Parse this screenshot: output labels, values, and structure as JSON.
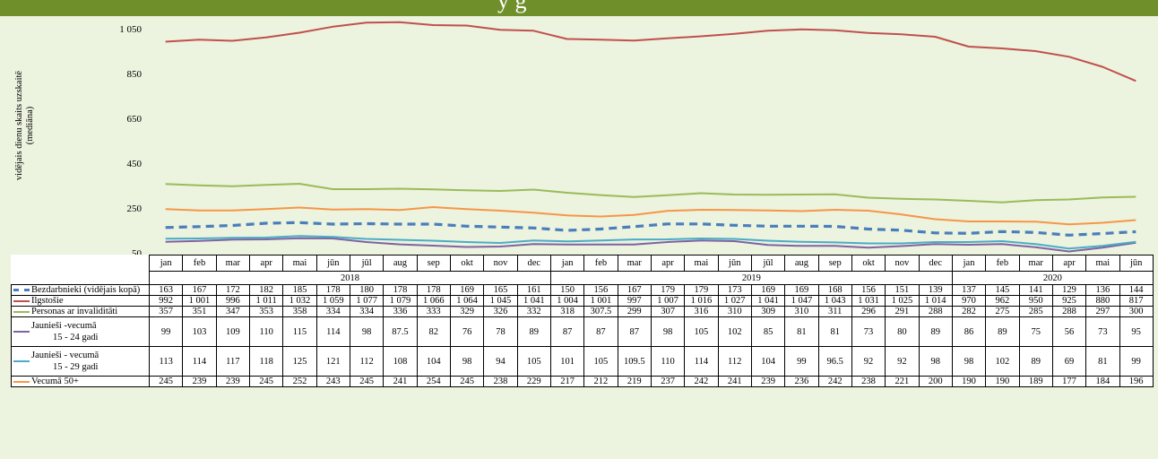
{
  "header": {
    "title_fragment": "y                    g"
  },
  "chart_data": {
    "type": "line",
    "ylabel": "vidējais dienu skaits uzskaitē (mediāna)",
    "ylabel_lines": [
      "vidējais dienu skaits uzskaitē",
      "(mediāna)"
    ],
    "ylim": [
      50,
      1050
    ],
    "yticks": [
      "1 050",
      "850",
      "650",
      "450",
      "250",
      "50"
    ],
    "ytick_values": [
      1050,
      850,
      650,
      450,
      250,
      50
    ],
    "grid": false,
    "months": [
      "jan",
      "feb",
      "mar",
      "apr",
      "mai",
      "jūn",
      "jūl",
      "aug",
      "sep",
      "okt",
      "nov",
      "dec",
      "jan",
      "feb",
      "mar",
      "apr",
      "mai",
      "jūn",
      "jūl",
      "aug",
      "sep",
      "okt",
      "nov",
      "dec",
      "jan",
      "feb",
      "mar",
      "apr",
      "mai",
      "jūn"
    ],
    "years": [
      {
        "label": "2018",
        "span": 12
      },
      {
        "label": "2019",
        "span": 12
      },
      {
        "label": "2020",
        "span": 6
      }
    ],
    "series": [
      {
        "name": "Bezdarbnieki (vidējais kopā)",
        "color": "#4a7ebb",
        "dash": true,
        "values": [
          "163",
          "167",
          "172",
          "182",
          "185",
          "178",
          "180",
          "178",
          "178",
          "169",
          "165",
          "161",
          "150",
          "156",
          "167",
          "179",
          "179",
          "173",
          "169",
          "169",
          "168",
          "156",
          "151",
          "139",
          "137",
          "145",
          "141",
          "129",
          "136",
          "144"
        ]
      },
      {
        "name": "Ilgstošie",
        "color": "#c0504d",
        "dash": false,
        "values": [
          "992",
          "1 001",
          "996",
          "1 011",
          "1 032",
          "1 059",
          "1 077",
          "1 079",
          "1 066",
          "1 064",
          "1 045",
          "1 041",
          "1 004",
          "1 001",
          "997",
          "1 007",
          "1 016",
          "1 027",
          "1 041",
          "1 047",
          "1 043",
          "1 031",
          "1 025",
          "1 014",
          "970",
          "962",
          "950",
          "925",
          "880",
          "817"
        ]
      },
      {
        "name": "Personas ar invaliditāti",
        "color": "#9bbb59",
        "dash": false,
        "values": [
          "357",
          "351",
          "347",
          "353",
          "358",
          "334",
          "334",
          "336",
          "333",
          "329",
          "326",
          "332",
          "318",
          "307.5",
          "299",
          "307",
          "316",
          "310",
          "309",
          "310",
          "311",
          "296",
          "291",
          "288",
          "282",
          "275",
          "285",
          "288",
          "297",
          "300"
        ]
      },
      {
        "name": "Jaunieši -vecumā 15 - 24 gadi",
        "label_lines": [
          "Jaunieši -vecumā",
          "15 - 24 gadi"
        ],
        "color": "#7f63a2",
        "dash": false,
        "values": [
          "99",
          "103",
          "109",
          "110",
          "115",
          "114",
          "98",
          "87.5",
          "82",
          "76",
          "78",
          "89",
          "87",
          "87",
          "87",
          "98",
          "105",
          "102",
          "85",
          "81",
          "81",
          "73",
          "80",
          "89",
          "86",
          "89",
          "75",
          "56",
          "73",
          "95"
        ]
      },
      {
        "name": "Jaunieši - vecumā 15 - 29 gadi",
        "label_lines": [
          "Jaunieši - vecumā",
          "15 - 29 gadi"
        ],
        "color": "#4bacc6",
        "dash": false,
        "values": [
          "113",
          "114",
          "117",
          "118",
          "125",
          "121",
          "112",
          "108",
          "104",
          "98",
          "94",
          "105",
          "101",
          "105",
          "109.5",
          "110",
          "114",
          "112",
          "104",
          "99",
          "96.5",
          "92",
          "92",
          "98",
          "98",
          "102",
          "89",
          "69",
          "81",
          "99"
        ]
      },
      {
        "name": "Vecumā 50+",
        "color": "#f79646",
        "dash": false,
        "values": [
          "245",
          "239",
          "239",
          "245",
          "252",
          "243",
          "245",
          "241",
          "254",
          "245",
          "238",
          "229",
          "217",
          "212",
          "219",
          "237",
          "242",
          "241",
          "239",
          "236",
          "242",
          "238",
          "221",
          "200",
          "190",
          "190",
          "189",
          "177",
          "184",
          "196"
        ]
      }
    ]
  }
}
